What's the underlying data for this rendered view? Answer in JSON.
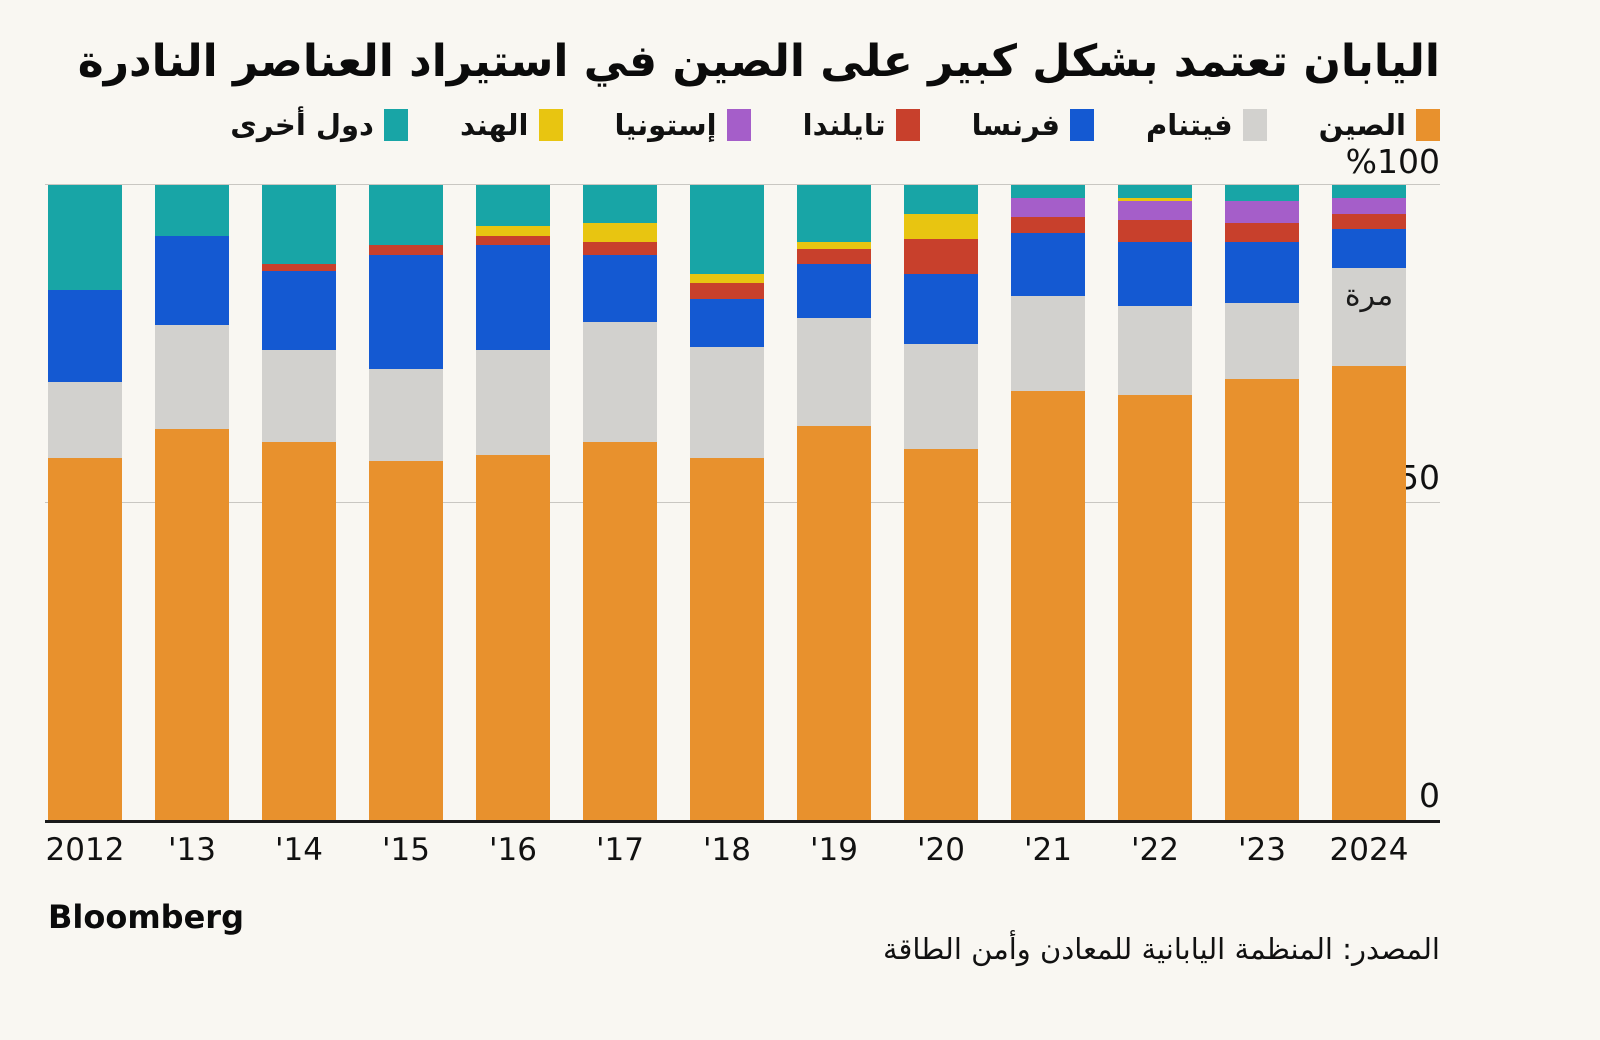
{
  "title": "اليابان تعتمد بشكل كبير على الصين في استيراد العناصر النادرة",
  "axis": {
    "y100": "%100",
    "y50": "50",
    "y0": "0"
  },
  "annotation": {
    "text": "مرة"
  },
  "footer": {
    "brand": "Bloomberg",
    "source": "المصدر: المنظمة اليابانية للمعادن وأمن الطاقة"
  },
  "chart_data": {
    "type": "bar",
    "subtype": "stacked-100-percent",
    "title": "اليابان تعتمد بشكل كبير على الصين في استيراد العناصر النادرة",
    "unit": "%",
    "ylim": [
      0,
      100
    ],
    "yticks": [
      "%100",
      "50",
      "0"
    ],
    "grid": "horizontal",
    "legend_position": "top-right",
    "categories": [
      "2012",
      "'13",
      "'14",
      "'15",
      "'16",
      "'17",
      "'18",
      "'19",
      "'20",
      "'21",
      "'22",
      "'23",
      "2024"
    ],
    "series": [
      {
        "name": "الصين",
        "color": "#E8912D",
        "values": [
          57.0,
          61.5,
          59.5,
          56.5,
          57.5,
          59.5,
          57.0,
          62.0,
          58.5,
          67.5,
          67.0,
          69.5,
          71.5
        ]
      },
      {
        "name": "فيتنام",
        "color": "#D2D1CE",
        "values": [
          12.0,
          16.5,
          14.5,
          14.5,
          16.5,
          19.0,
          17.5,
          17.0,
          16.5,
          15.0,
          14.0,
          12.0,
          15.5
        ]
      },
      {
        "name": "فرنسا",
        "color": "#1459D2",
        "values": [
          14.5,
          14.0,
          12.5,
          18.0,
          16.5,
          10.5,
          7.5,
          8.5,
          11.0,
          10.0,
          10.0,
          9.5,
          6.0
        ]
      },
      {
        "name": "تايلندا",
        "color": "#C8402C",
        "values": [
          0,
          0,
          1.0,
          1.5,
          1.5,
          2.0,
          2.5,
          2.5,
          5.5,
          2.5,
          3.5,
          3.0,
          2.5
        ]
      },
      {
        "name": "إستونيا",
        "color": "#A55EC9",
        "values": [
          0,
          0,
          0,
          0,
          0,
          0,
          0,
          0,
          0,
          3.0,
          3.0,
          3.5,
          2.5
        ]
      },
      {
        "name": "الهند",
        "color": "#E8C511",
        "values": [
          0,
          0,
          0,
          0,
          1.5,
          3.0,
          1.5,
          1.0,
          4.0,
          0,
          0.5,
          0,
          0
        ]
      },
      {
        "name": "دول أخرى",
        "color": "#18A5A6",
        "values": [
          16.5,
          8.0,
          12.5,
          9.5,
          6.5,
          6.0,
          14.0,
          9.0,
          4.5,
          2.0,
          2.0,
          2.5,
          2.0
        ]
      }
    ],
    "annotations": [
      {
        "text": "مرة",
        "target_category": "2024",
        "target_series": "فيتنام"
      }
    ]
  }
}
